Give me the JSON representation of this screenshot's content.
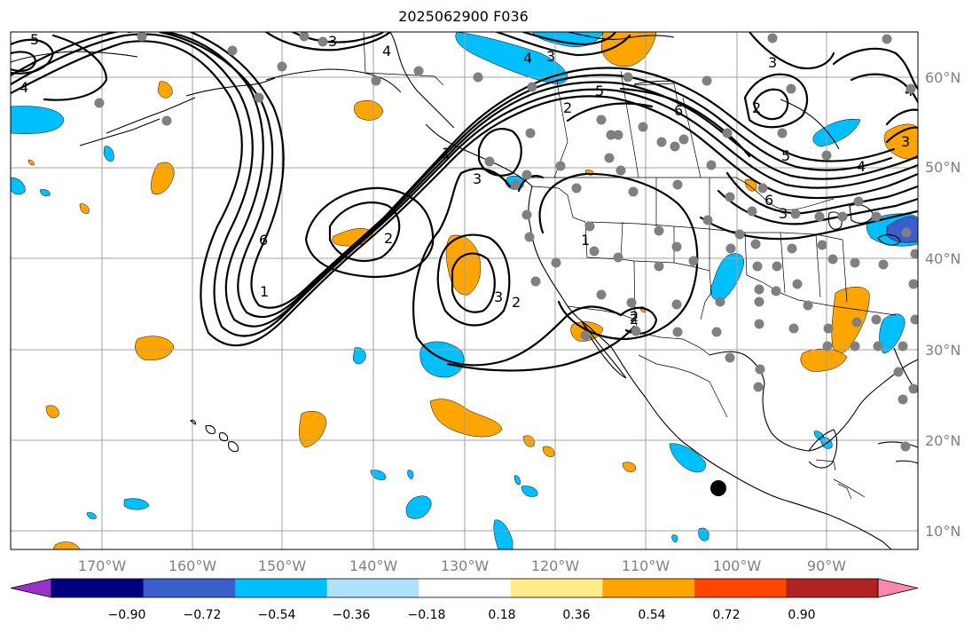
{
  "title": "2025062900 F036",
  "map": {
    "projection": "cylindrical lat-lon",
    "lon_range": [
      -180,
      -80
    ],
    "lat_range": [
      8,
      65
    ],
    "gridlines": true,
    "lon_ticks": [
      "170°W",
      "160°W",
      "150°W",
      "140°W",
      "130°W",
      "120°W",
      "110°W",
      "100°W",
      "90°W"
    ],
    "lat_ticks": [
      "10°N",
      "20°N",
      "30°N",
      "40°N",
      "50°N",
      "60°N"
    ],
    "tick_color": "#808080"
  },
  "contour_labels": [
    "5",
    "3",
    "4",
    "3",
    "4",
    "4",
    "6",
    "1",
    "3",
    "2",
    "2",
    "3",
    "2",
    "1",
    "1",
    "2",
    "5",
    "2",
    "6",
    "3",
    "2",
    "3",
    "5",
    "6",
    "4",
    "3",
    "4"
  ],
  "stations_color": "#808080",
  "marker_color": "#000000",
  "colorbar": {
    "ticks": [
      "−0.90",
      "−0.72",
      "−0.54",
      "−0.36",
      "−0.18",
      "0.18",
      "0.36",
      "0.54",
      "0.72",
      "0.90"
    ],
    "extend": "both",
    "colors": [
      "#9932cc",
      "#000080",
      "#3a5fcd",
      "#00bfff",
      "#b0e2ff",
      "#ffffff",
      "#ffec8b",
      "#ffa500",
      "#ff4500",
      "#b22222",
      "#ff88aa"
    ]
  },
  "shading_colors": {
    "negative": "#00bfff",
    "strong_negative": "#3a5fcd",
    "positive": "#ffa500"
  }
}
